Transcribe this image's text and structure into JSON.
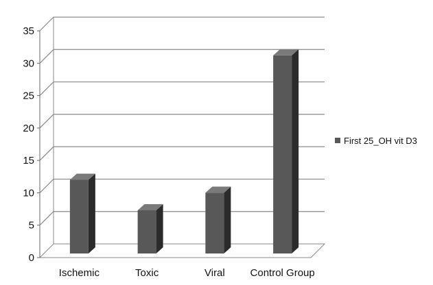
{
  "chart_data": {
    "type": "bar",
    "categories": [
      "Ischemic",
      "Toxic",
      "Viral",
      "Control Group"
    ],
    "series": [
      {
        "name": "First 25_OH vit D3",
        "values": [
          12,
          7.3,
          10,
          31.2
        ],
        "color": "#585858"
      }
    ],
    "ylim": [
      0,
      35
    ],
    "yticks": [
      0,
      5,
      10,
      15,
      20,
      25,
      30,
      35
    ],
    "grid": true,
    "legend_position": "right",
    "three_d": true
  },
  "colors": {
    "bar_front": "#585858",
    "bar_side": "#2b2b2b",
    "bar_top": "#7a7a7a",
    "grid": "#8a8a8a",
    "axis": "#666666"
  }
}
